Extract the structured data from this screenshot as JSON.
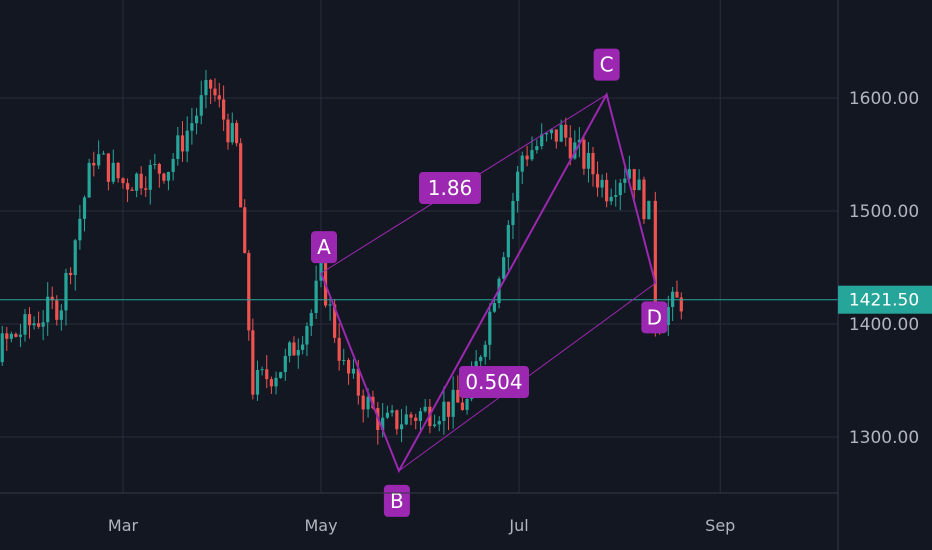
{
  "chart_data": {
    "type": "candlestick",
    "symbol_pattern": "XABCD harmonic pattern",
    "y_ticks": [
      "1300.00",
      "1400.00",
      "1500.00",
      "1600.00"
    ],
    "y_tick_values": [
      1300,
      1400,
      1500,
      1600
    ],
    "x_ticks": [
      "Mar",
      "May",
      "Jul",
      "Sep"
    ],
    "ylim": [
      1250,
      1650
    ],
    "last_price": 1421.5,
    "last_price_label": "1421.50",
    "grid": true,
    "pattern_points": [
      {
        "label": "A",
        "date": "2021-05-01",
        "price": 1445
      },
      {
        "label": "B",
        "date": "2021-05-25",
        "price": 1270
      },
      {
        "label": "C",
        "date": "2021-07-28",
        "price": 1603
      },
      {
        "label": "D",
        "date": "2021-08-12",
        "price": 1436
      }
    ],
    "ratios": [
      {
        "label": "1.86",
        "between": "A-C"
      },
      {
        "label": "0.504",
        "between": "B-D"
      }
    ],
    "series_approx_close": [
      {
        "date": "2021-01-01",
        "close": 1340
      },
      {
        "date": "2021-01-20",
        "close": 1375
      },
      {
        "date": "2021-02-10",
        "close": 1420
      },
      {
        "date": "2021-02-20",
        "close": 1550
      },
      {
        "date": "2021-03-01",
        "close": 1525
      },
      {
        "date": "2021-03-15",
        "close": 1540
      },
      {
        "date": "2021-03-28",
        "close": 1610
      },
      {
        "date": "2021-04-05",
        "close": 1555
      },
      {
        "date": "2021-04-10",
        "close": 1345
      },
      {
        "date": "2021-04-20",
        "close": 1365
      },
      {
        "date": "2021-04-28",
        "close": 1410
      },
      {
        "date": "2021-05-01",
        "close": 1445
      },
      {
        "date": "2021-05-08",
        "close": 1360
      },
      {
        "date": "2021-05-20",
        "close": 1310
      },
      {
        "date": "2021-06-05",
        "close": 1325
      },
      {
        "date": "2021-06-15",
        "close": 1330
      },
      {
        "date": "2021-06-22",
        "close": 1410
      },
      {
        "date": "2021-07-02",
        "close": 1550
      },
      {
        "date": "2021-07-14",
        "close": 1570
      },
      {
        "date": "2021-07-28",
        "close": 1520
      },
      {
        "date": "2021-08-04",
        "close": 1540
      },
      {
        "date": "2021-08-10",
        "close": 1495
      },
      {
        "date": "2021-08-12",
        "close": 1405
      },
      {
        "date": "2021-08-20",
        "close": 1421.5
      }
    ]
  },
  "colors": {
    "background": "#131722",
    "grid": "#2a2e39",
    "up": "#26a69a",
    "down": "#ef5350",
    "pattern": "#9c27b0",
    "last_price": "#26a69a"
  }
}
